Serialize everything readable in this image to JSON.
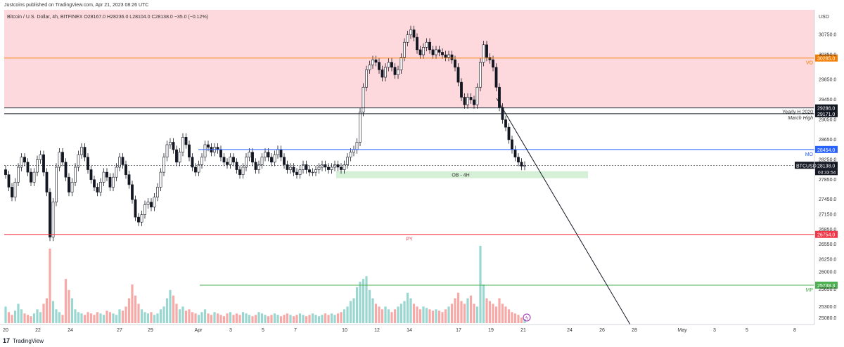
{
  "header": {
    "published": "Justcoins published on TradingView.com, Apr 21, 2023 08:26 UTC"
  },
  "footer": {
    "logo": "17",
    "brand": "TradingView"
  },
  "chart_data": {
    "type": "candlestick",
    "title": "Bitcoin / U.S. Dollar, 4h, BITFINEX O28167.0 H28236.0 L28104.0 C28138.0 −35.0 (−0.12%)",
    "currency": "USD",
    "ylim": [
      24950,
      31250
    ],
    "y_ticks": [
      25080.0,
      25300.0,
      25650.0,
      26000.0,
      26250.0,
      26550.0,
      26850.0,
      27150.0,
      27450.0,
      27850.0,
      28250.0,
      28650.0,
      29050.0,
      29450.0,
      29850.0,
      30350.0,
      30750.0
    ],
    "x_ticks": [
      "20",
      "22",
      "24",
      "27",
      "29",
      "Apr",
      "3",
      "5",
      "7",
      "10",
      "12",
      "14",
      "17",
      "19",
      "21",
      "24",
      "26",
      "28",
      "May",
      "3",
      "5",
      "8"
    ],
    "levels": [
      {
        "price": 30285.0,
        "label": "30285.0",
        "tag": "VO",
        "color": "#f57c00"
      },
      {
        "price": 29286.0,
        "label": "29286.0",
        "tag": "Yearly H 2020",
        "color": "#131722"
      },
      {
        "price": 29171.0,
        "label": "29171.0",
        "tag": "March High",
        "color": "#131722"
      },
      {
        "price": 28454.0,
        "label": "28454.0",
        "tag": "MO",
        "color": "#2962ff"
      },
      {
        "price": 28138.0,
        "label": "28138.0",
        "tag": "BTCUSD",
        "sub": "03:33:54",
        "color": "#131722"
      },
      {
        "price": 26754.0,
        "label": "26754.0",
        "tag": "PY",
        "color": "#f23645"
      },
      {
        "price": 25738.3,
        "label": "25738.3",
        "tag": "MP",
        "color": "#4caf50"
      }
    ],
    "zones": [
      {
        "label": "",
        "from": 29300,
        "to": 31250,
        "color": "#fdd8dc"
      },
      {
        "label": "OB - 4H",
        "from": 27880,
        "to": 28020,
        "color": "#d5f0d6"
      }
    ],
    "close": [
      27950,
      27700,
      27500,
      27800,
      28100,
      28300,
      28200,
      28000,
      27800,
      28000,
      28250,
      28350,
      28000,
      27600,
      26700,
      27400,
      28100,
      28400,
      28200,
      27900,
      27600,
      27800,
      28100,
      28350,
      28500,
      28300,
      28050,
      27850,
      27700,
      27600,
      27800,
      28000,
      27900,
      27700,
      27900,
      28100,
      28300,
      28150,
      27950,
      27750,
      27450,
      27100,
      27000,
      27150,
      27350,
      27400,
      27300,
      27500,
      27700,
      28000,
      28300,
      28550,
      28600,
      28450,
      28200,
      28400,
      28700,
      28550,
      28300,
      28100,
      28000,
      28150,
      28300,
      28550,
      28500,
      28400,
      28500,
      28450,
      28300,
      28200,
      28150,
      28300,
      28200,
      28050,
      27950,
      28100,
      28300,
      28400,
      28200,
      28050,
      28150,
      28300,
      28400,
      28300,
      28200,
      28350,
      28450,
      28300,
      28150,
      28050,
      28100,
      28000,
      27950,
      28050,
      28150,
      28050,
      28000,
      28000,
      28050,
      28100,
      28150,
      28100,
      28050,
      28100,
      28150,
      28100,
      28050,
      28150,
      28300,
      28400,
      28450,
      28600,
      29200,
      29700,
      30050,
      30150,
      30250,
      30200,
      30050,
      29900,
      30100,
      30200,
      30100,
      29950,
      30050,
      30300,
      30600,
      30750,
      30850,
      30700,
      30450,
      30350,
      30500,
      30600,
      30450,
      30350,
      30450,
      30400,
      30350,
      30300,
      30350,
      30250,
      30100,
      29800,
      29500,
      29350,
      29500,
      29450,
      29350,
      29700,
      30200,
      30550,
      30300,
      30250,
      30100,
      29700,
      29300,
      29050,
      28900,
      28650,
      28450,
      28300,
      28200,
      28120,
      28138
    ],
    "volume": [
      600,
      400,
      300,
      450,
      700,
      500,
      350,
      300,
      250,
      350,
      500,
      400,
      700,
      900,
      2700,
      800,
      500,
      400,
      300,
      1600,
      1200,
      900,
      500,
      400,
      350,
      300,
      400,
      350,
      300,
      400,
      350,
      300,
      450,
      400,
      350,
      300,
      500,
      450,
      600,
      900,
      1400,
      1000,
      700,
      500,
      400,
      350,
      400,
      300,
      350,
      500,
      600,
      900,
      1200,
      1000,
      700,
      500,
      600,
      450,
      500,
      400,
      350,
      300,
      400,
      500,
      350,
      300,
      400,
      350,
      300,
      250,
      350,
      400,
      300,
      350,
      300,
      400,
      350,
      300,
      250,
      300,
      400,
      350,
      300,
      250,
      300,
      350,
      300,
      250,
      300,
      350,
      300,
      250,
      300,
      350,
      300,
      250,
      300,
      350,
      300,
      250,
      300,
      350,
      300,
      350,
      300,
      350,
      400,
      500,
      600,
      800,
      900,
      1300,
      1500,
      1600,
      1700,
      1200,
      900,
      700,
      600,
      500,
      600,
      500,
      400,
      500,
      600,
      700,
      800,
      1100,
      900,
      700,
      600,
      500,
      600,
      550,
      500,
      450,
      500,
      450,
      400,
      500,
      600,
      700,
      900,
      1100,
      800,
      700,
      900,
      1000,
      700,
      600,
      2800,
      1400,
      900,
      800,
      700,
      600,
      900,
      700,
      600,
      500,
      400,
      350,
      300,
      200,
      150
    ]
  }
}
